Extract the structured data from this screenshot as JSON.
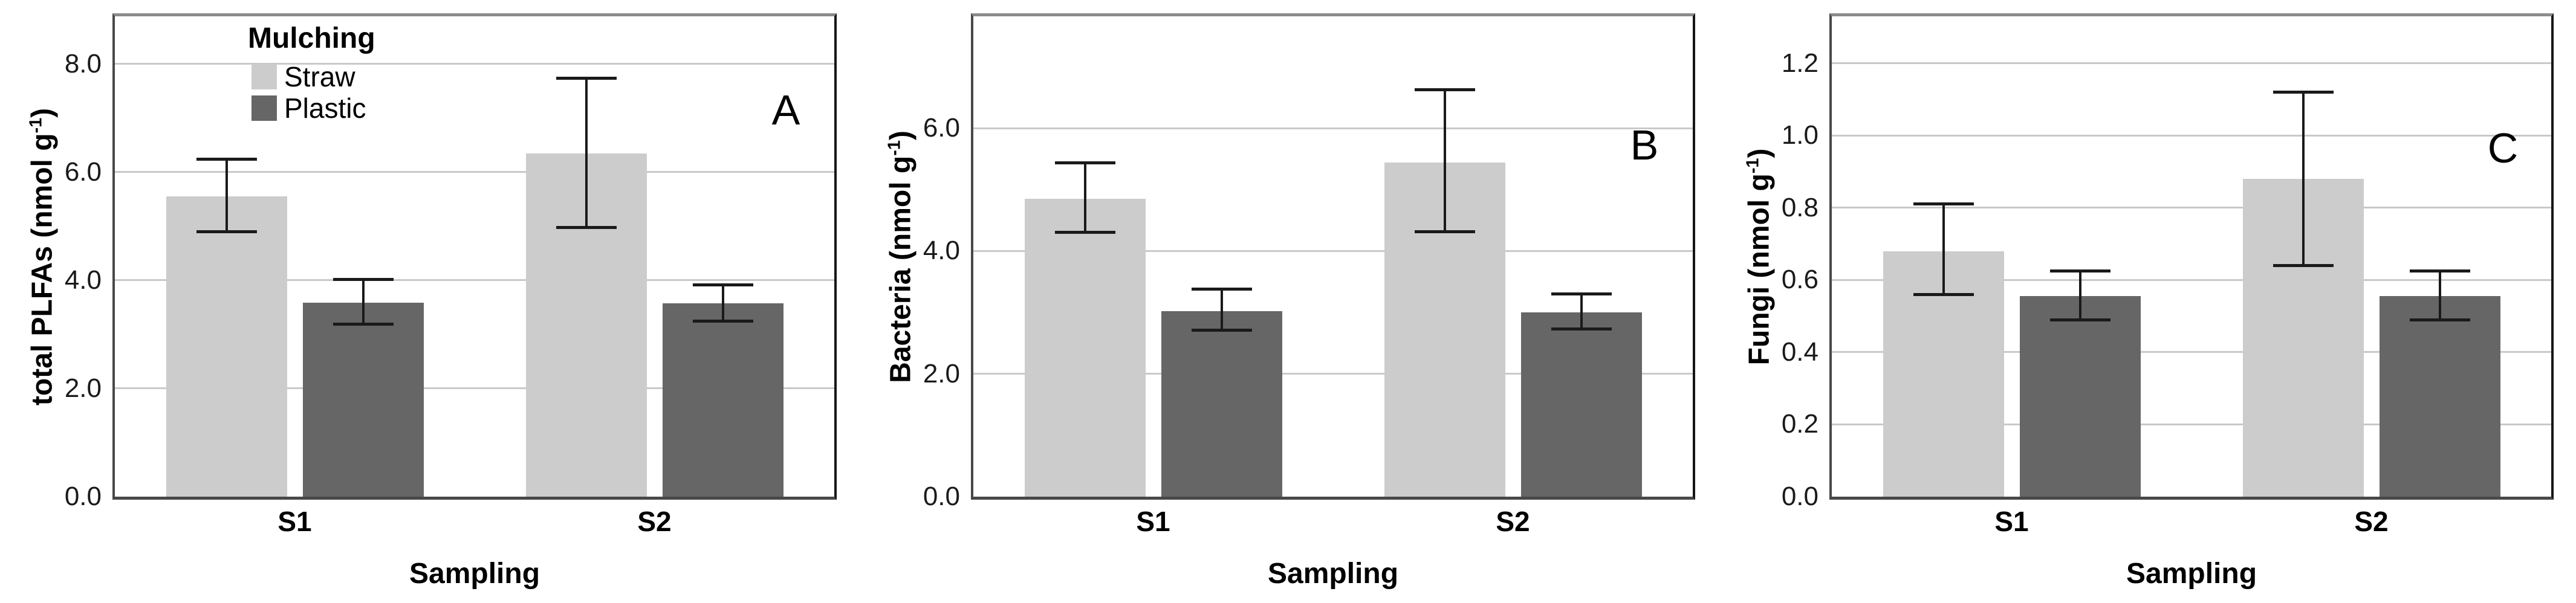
{
  "figure": {
    "xlabel": "Sampling",
    "categories": [
      "S1",
      "S2"
    ],
    "legend": {
      "title": "Mulching",
      "items": [
        {
          "label": "Straw",
          "color": "#cccccc"
        },
        {
          "label": "Plastic",
          "color": "#666666"
        }
      ]
    },
    "colors": {
      "straw_bar": "#cccccc",
      "plastic_bar": "#666666",
      "gridline": "#c9c9c9",
      "error_bar": "#1a1a1a",
      "frame_top": "#8b8b8b",
      "frame_dark": "#484848"
    }
  },
  "chart_data": [
    {
      "type": "bar",
      "panel_label": "A",
      "ylabel_prefix": "total PLFAs (nmol g",
      "ylabel_sup": "-1",
      "ylabel_suffix": ")",
      "ylim": [
        0,
        8.88
      ],
      "yticks": [
        0,
        2,
        4,
        6,
        8
      ],
      "categories": [
        "S1",
        "S2"
      ],
      "grid": true,
      "legend_position": "top-left-inside",
      "series": [
        {
          "name": "Straw",
          "color": "#cccccc",
          "values": [
            5.55,
            6.35
          ],
          "err_lo": [
            4.9,
            4.98
          ],
          "err_hi": [
            6.24,
            7.74
          ]
        },
        {
          "name": "Plastic",
          "color": "#666666",
          "values": [
            3.59,
            3.57
          ],
          "err_lo": [
            3.19,
            3.25
          ],
          "err_hi": [
            4.01,
            3.91
          ]
        }
      ]
    },
    {
      "type": "bar",
      "panel_label": "B",
      "ylabel_prefix": "Bacteria (nmol g",
      "ylabel_sup": "-1",
      "ylabel_suffix": ")",
      "ylim": [
        0,
        7.82
      ],
      "yticks": [
        0,
        2,
        4,
        6
      ],
      "categories": [
        "S1",
        "S2"
      ],
      "grid": true,
      "legend_position": "none",
      "series": [
        {
          "name": "Straw",
          "color": "#cccccc",
          "values": [
            4.85,
            5.44
          ],
          "err_lo": [
            4.3,
            4.31
          ],
          "err_hi": [
            5.43,
            6.62
          ]
        },
        {
          "name": "Plastic",
          "color": "#666666",
          "values": [
            3.02,
            3.0
          ],
          "err_lo": [
            2.71,
            2.73
          ],
          "err_hi": [
            3.38,
            3.3
          ]
        }
      ]
    },
    {
      "type": "bar",
      "panel_label": "C",
      "ylabel_prefix": "Fungi (nmol g",
      "ylabel_sup": "-1",
      "ylabel_suffix": ")",
      "ylim": [
        0,
        1.33
      ],
      "yticks": [
        0,
        0.2,
        0.4,
        0.6,
        0.8,
        1.0,
        1.2
      ],
      "categories": [
        "S1",
        "S2"
      ],
      "grid": true,
      "legend_position": "none",
      "series": [
        {
          "name": "Straw",
          "color": "#cccccc",
          "values": [
            0.68,
            0.88
          ],
          "err_lo": [
            0.56,
            0.64
          ],
          "err_hi": [
            0.81,
            1.12
          ]
        },
        {
          "name": "Plastic",
          "color": "#666666",
          "values": [
            0.555,
            0.555
          ],
          "err_lo": [
            0.49,
            0.49
          ],
          "err_hi": [
            0.625,
            0.625
          ]
        }
      ]
    }
  ]
}
